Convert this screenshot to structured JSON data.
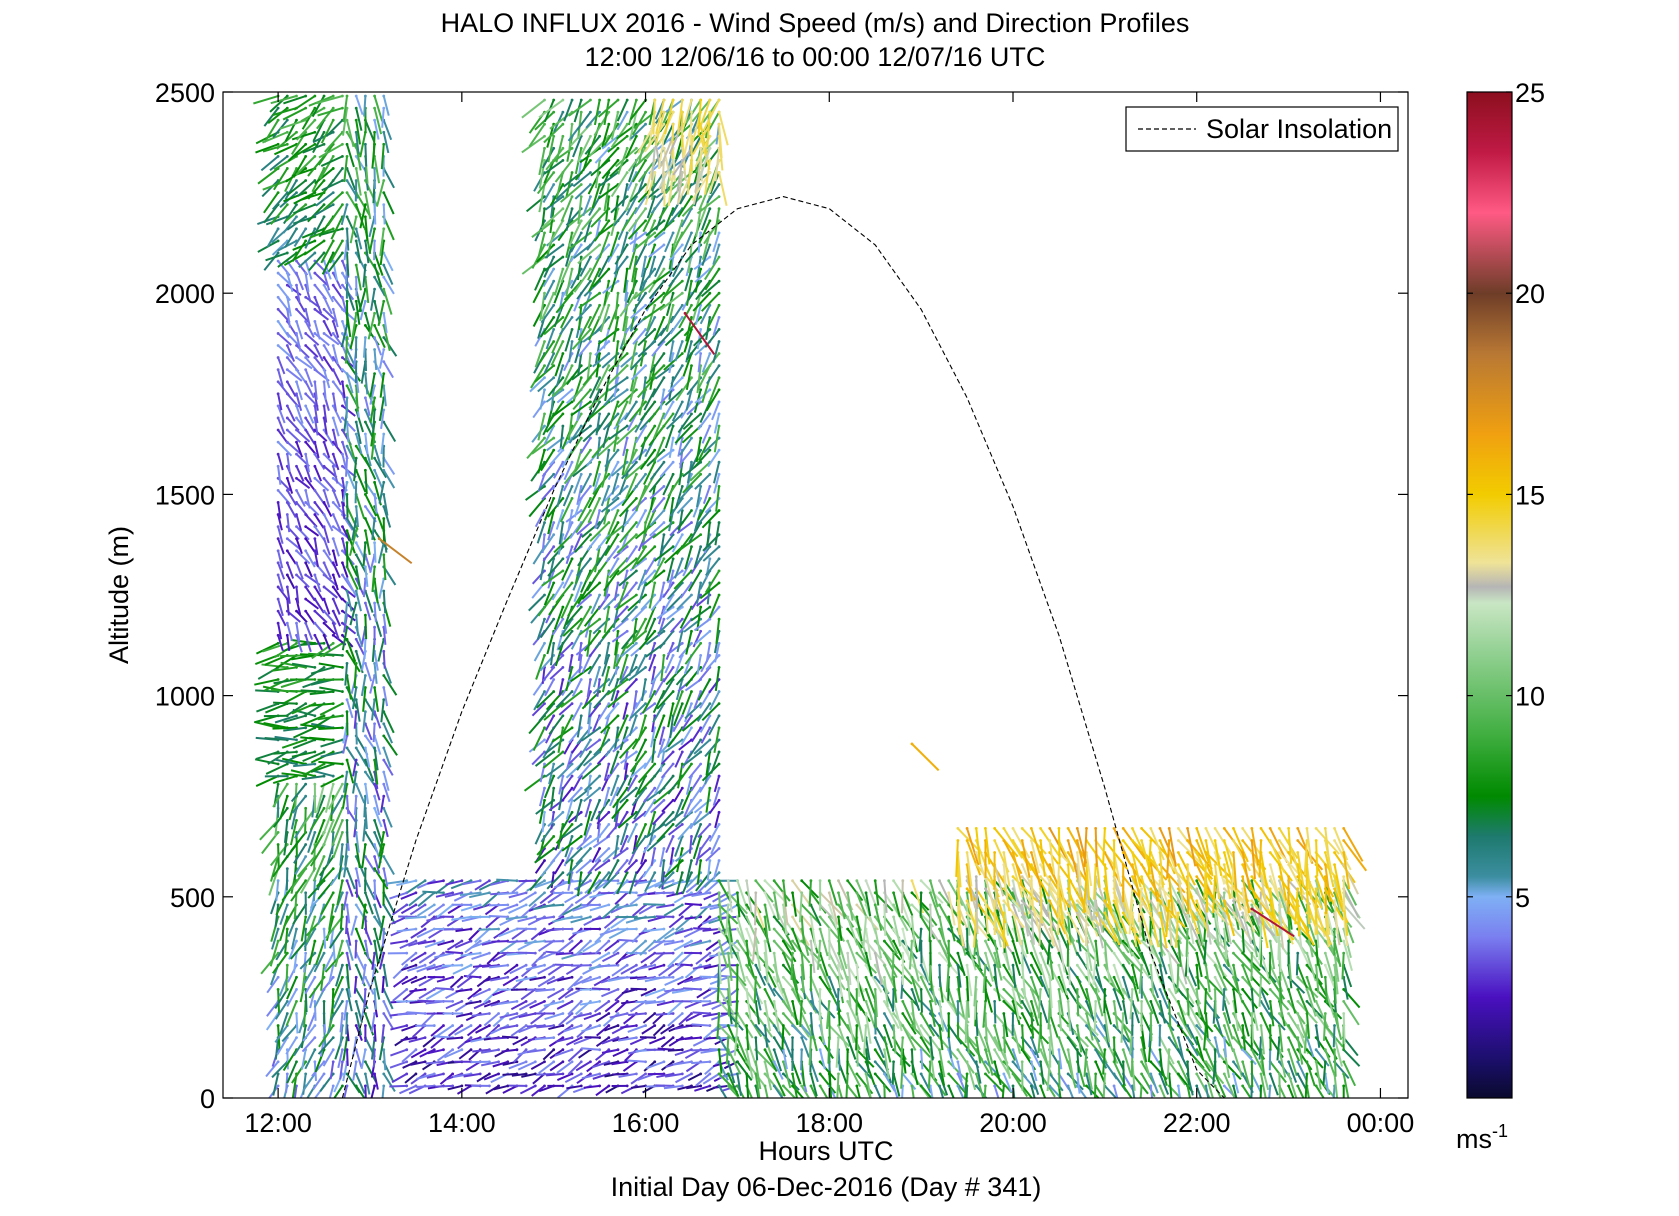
{
  "chart_data": {
    "type": "scatter",
    "subtype": "wind-barb-profile",
    "title": "HALO INFLUX 2016 - Wind Speed (m/s) and Direction Profiles",
    "subtitle": "12:00 12/06/16 to 00:00 12/07/16  UTC",
    "xlabel": "Hours UTC",
    "ylabel": "Altitude (m)",
    "footer": "Initial Day 06-Dec-2016 (Day # 341)",
    "xlim": [
      11.4,
      24.3
    ],
    "ylim": [
      0,
      2500
    ],
    "x_ticks": [
      12,
      14,
      16,
      18,
      20,
      22,
      24
    ],
    "x_tick_labels": [
      "12:00",
      "14:00",
      "16:00",
      "18:00",
      "20:00",
      "22:00",
      "00:00"
    ],
    "y_ticks": [
      0,
      500,
      1000,
      1500,
      2000,
      2500
    ],
    "y_tick_labels": [
      "0",
      "500",
      "1000",
      "1500",
      "2000",
      "2500"
    ],
    "legend": {
      "position": "top-right",
      "entries": [
        "Solar Insolation"
      ]
    },
    "series": [
      {
        "name": "Solar Insolation",
        "style": "dashed",
        "color": "#000000",
        "x": [
          12.7,
          13.0,
          13.5,
          14.0,
          14.5,
          15.0,
          15.5,
          16.0,
          16.5,
          17.0,
          17.5,
          18.0,
          18.5,
          19.0,
          19.5,
          20.0,
          20.5,
          21.0,
          21.5,
          22.0,
          22.3
        ],
        "y": [
          0,
          270,
          640,
          960,
          1240,
          1510,
          1750,
          1960,
          2120,
          2210,
          2240,
          2210,
          2120,
          1960,
          1740,
          1470,
          1150,
          770,
          360,
          70,
          0
        ]
      }
    ],
    "wind_segments": [
      {
        "label": "12:00-12:45 low",
        "t_start": 12.0,
        "t_end": 12.75,
        "alt_min": 30,
        "alt_max": 780,
        "speed_range": [
          3,
          11
        ],
        "dir_deg": 250
      },
      {
        "label": "12:00-12:45 mid",
        "t_start": 12.0,
        "t_end": 12.75,
        "alt_min": 800,
        "alt_max": 1150,
        "speed_range": [
          6,
          9
        ],
        "dir_deg": 190
      },
      {
        "label": "12:00-12:45 upper",
        "t_start": 12.0,
        "t_end": 12.75,
        "alt_min": 1150,
        "alt_max": 2100,
        "speed_range": [
          2,
          5
        ],
        "dir_deg": 300
      },
      {
        "label": "12:00-12:45 top",
        "t_start": 12.0,
        "t_end": 12.75,
        "alt_min": 2100,
        "alt_max": 2500,
        "speed_range": [
          5,
          10
        ],
        "dir_deg": 220
      },
      {
        "label": "13:00 column",
        "t_start": 12.75,
        "t_end": 13.2,
        "alt_min": 30,
        "alt_max": 2500,
        "speed_range": [
          2,
          10
        ],
        "dir_deg": 280
      },
      {
        "label": "13:30-17:00 surface",
        "t_start": 13.4,
        "t_end": 17.0,
        "alt_min": 30,
        "alt_max": 560,
        "speed_range": [
          1,
          6
        ],
        "dir_deg": 200
      },
      {
        "label": "15:00-16:45 upper",
        "t_start": 14.9,
        "t_end": 16.8,
        "alt_min": 560,
        "alt_max": 2500,
        "speed_range": [
          2,
          11
        ],
        "dir_deg": 240
      },
      {
        "label": "16:00-16:45 top",
        "t_start": 16.1,
        "t_end": 16.8,
        "alt_min": 2300,
        "alt_max": 2500,
        "speed_range": [
          12,
          15
        ],
        "dir_deg": 260
      },
      {
        "label": "17:00-24:00 boundary layer",
        "t_start": 16.8,
        "t_end": 23.6,
        "alt_min": 30,
        "alt_max": 560,
        "speed_range": [
          4,
          14
        ],
        "dir_deg": 290
      },
      {
        "label": "19:30-24:00 upper jet",
        "t_start": 19.4,
        "t_end": 23.6,
        "alt_min": 460,
        "alt_max": 680,
        "speed_range": [
          12,
          17
        ],
        "dir_deg": 290
      }
    ],
    "isolated_barbs": [
      {
        "x": 16.43,
        "y": 1950,
        "speed": 24
      },
      {
        "x": 18.9,
        "y": 880,
        "speed": 16
      },
      {
        "x": 13.1,
        "y": 1390,
        "speed": 18
      },
      {
        "x": 22.6,
        "y": 470,
        "speed": 24
      }
    ],
    "colorbar": {
      "label": "ms",
      "label_superscript": "-1",
      "range": [
        0,
        25
      ],
      "ticks": [
        5,
        10,
        15,
        20,
        25
      ],
      "tick_labels": [
        "5",
        "10",
        "15",
        "20",
        "25"
      ],
      "stops": [
        {
          "v": 0,
          "c": "#0a0a2e"
        },
        {
          "v": 1,
          "c": "#1c0f6e"
        },
        {
          "v": 2.5,
          "c": "#4a10c0"
        },
        {
          "v": 4,
          "c": "#7a7ff0"
        },
        {
          "v": 5,
          "c": "#7fb0f5"
        },
        {
          "v": 5.5,
          "c": "#3c8ea0"
        },
        {
          "v": 6.5,
          "c": "#1e7a6e"
        },
        {
          "v": 7.5,
          "c": "#008a00"
        },
        {
          "v": 9,
          "c": "#3fae3f"
        },
        {
          "v": 11,
          "c": "#8fcf8f"
        },
        {
          "v": 12.3,
          "c": "#c9e6c4"
        },
        {
          "v": 12.7,
          "c": "#b5b5b5"
        },
        {
          "v": 13.3,
          "c": "#efe398"
        },
        {
          "v": 15,
          "c": "#f2cc00"
        },
        {
          "v": 16.5,
          "c": "#f0a010"
        },
        {
          "v": 18.5,
          "c": "#b87834"
        },
        {
          "v": 20,
          "c": "#6e3d28"
        },
        {
          "v": 22,
          "c": "#ff5a84"
        },
        {
          "v": 23.5,
          "c": "#c01a45"
        },
        {
          "v": 25,
          "c": "#8c0f1e"
        }
      ]
    }
  }
}
